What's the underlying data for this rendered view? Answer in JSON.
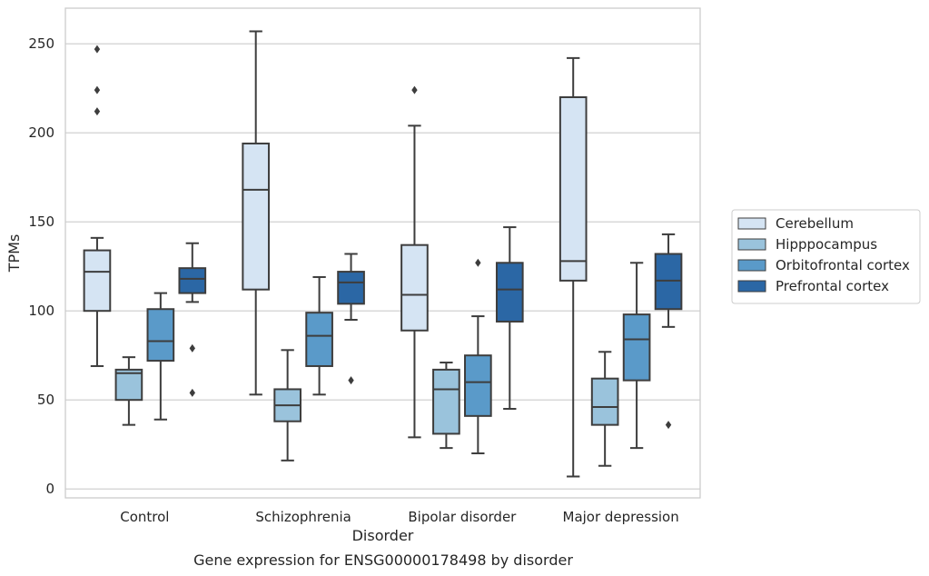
{
  "chart_data": {
    "type": "boxplot",
    "title": "Gene expression for ENSG00000178498 by disorder",
    "xlabel": "Disorder",
    "ylabel": "TPMs",
    "ylim": [
      -5,
      270
    ],
    "yticks": [
      0,
      50,
      100,
      150,
      200,
      250
    ],
    "grid": "horizontal",
    "legend_position": "right",
    "categories": [
      "Control",
      "Schizophrenia",
      "Bipolar disorder",
      "Major depression"
    ],
    "series": [
      {
        "name": "Cerebellum",
        "color": "#d5e4f3",
        "boxes": [
          {
            "whisker_low": 69,
            "q1": 100,
            "median": 122,
            "q3": 134,
            "whisker_high": 141,
            "outliers": [
              212,
              224,
              247
            ]
          },
          {
            "whisker_low": 53,
            "q1": 112,
            "median": 168,
            "q3": 194,
            "whisker_high": 257,
            "outliers": []
          },
          {
            "whisker_low": 29,
            "q1": 89,
            "median": 109,
            "q3": 137,
            "whisker_high": 204,
            "outliers": [
              224
            ]
          },
          {
            "whisker_low": 7,
            "q1": 117,
            "median": 128,
            "q3": 220,
            "whisker_high": 242,
            "outliers": []
          }
        ]
      },
      {
        "name": "Hipppocampus",
        "color": "#9ac3dc",
        "boxes": [
          {
            "whisker_low": 36,
            "q1": 50,
            "median": 65,
            "q3": 67,
            "whisker_high": 74,
            "outliers": []
          },
          {
            "whisker_low": 16,
            "q1": 38,
            "median": 47,
            "q3": 56,
            "whisker_high": 78,
            "outliers": []
          },
          {
            "whisker_low": 23,
            "q1": 31,
            "median": 56,
            "q3": 67,
            "whisker_high": 71,
            "outliers": []
          },
          {
            "whisker_low": 13,
            "q1": 36,
            "median": 46,
            "q3": 62,
            "whisker_high": 77,
            "outliers": []
          }
        ]
      },
      {
        "name": "Orbitofrontal cortex",
        "color": "#5a9ac9",
        "boxes": [
          {
            "whisker_low": 39,
            "q1": 72,
            "median": 83,
            "q3": 101,
            "whisker_high": 110,
            "outliers": []
          },
          {
            "whisker_low": 53,
            "q1": 69,
            "median": 86,
            "q3": 99,
            "whisker_high": 119,
            "outliers": []
          },
          {
            "whisker_low": 20,
            "q1": 41,
            "median": 60,
            "q3": 75,
            "whisker_high": 97,
            "outliers": [
              127
            ]
          },
          {
            "whisker_low": 23,
            "q1": 61,
            "median": 84,
            "q3": 98,
            "whisker_high": 127,
            "outliers": []
          }
        ]
      },
      {
        "name": "Prefrontal cortex",
        "color": "#2b67a5",
        "boxes": [
          {
            "whisker_low": 105,
            "q1": 110,
            "median": 118,
            "q3": 124,
            "whisker_high": 138,
            "outliers": [
              54,
              79
            ]
          },
          {
            "whisker_low": 95,
            "q1": 104,
            "median": 116,
            "q3": 122,
            "whisker_high": 132,
            "outliers": [
              61
            ]
          },
          {
            "whisker_low": 45,
            "q1": 94,
            "median": 112,
            "q3": 127,
            "whisker_high": 147,
            "outliers": []
          },
          {
            "whisker_low": 91,
            "q1": 101,
            "median": 117,
            "q3": 132,
            "whisker_high": 143,
            "outliers": [
              36
            ]
          }
        ]
      }
    ]
  }
}
